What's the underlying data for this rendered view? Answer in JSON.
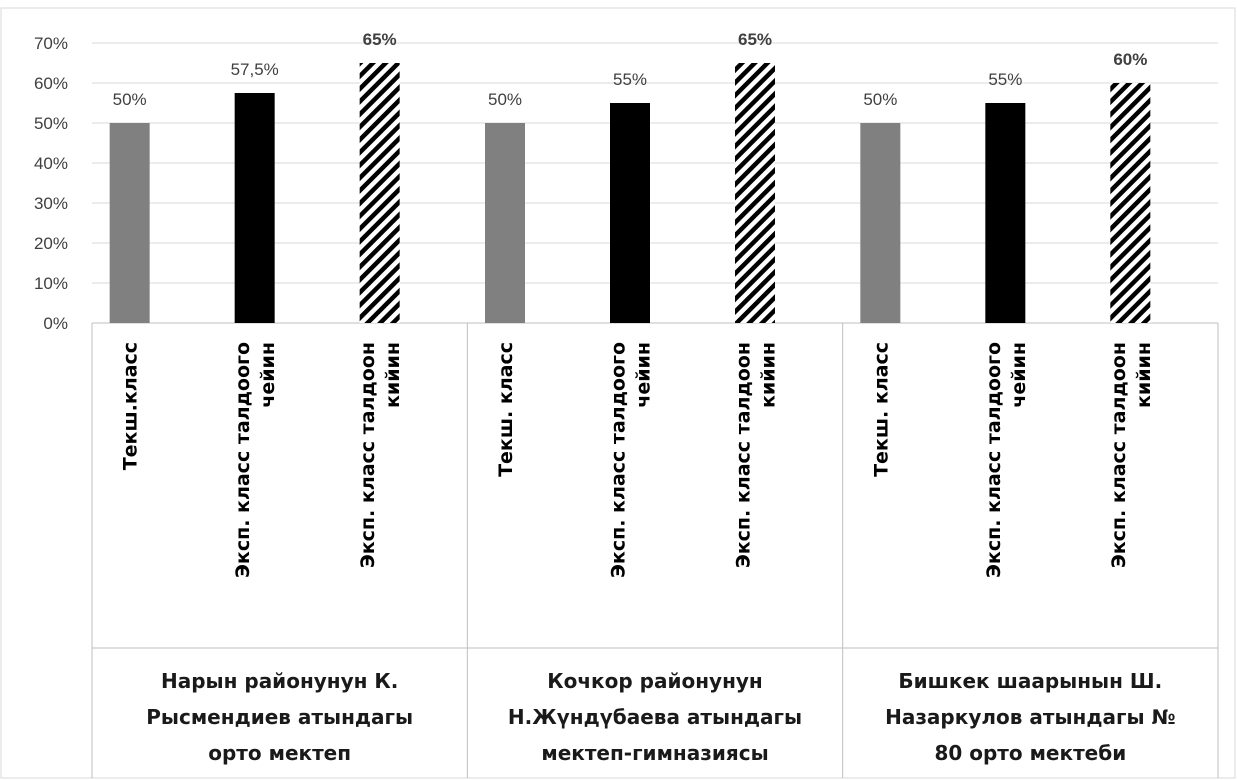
{
  "chart_data": {
    "type": "bar",
    "ylim": [
      0,
      0.7
    ],
    "ytick_step": 0.1,
    "ytick_labels": [
      "0%",
      "10%",
      "20%",
      "30%",
      "40%",
      "50%",
      "60%",
      "70%"
    ],
    "grid": true,
    "groups": [
      {
        "label": "Нарын районунун К. Рысмендиев атындагы орто мектеп",
        "label_lines": [
          "Нарын районунун К.",
          "Рысмендиев атындагы",
          "орто мектеп"
        ],
        "bars": [
          {
            "category": "Текш.класс",
            "category_lines": [
              "Текш.класс"
            ],
            "value": 0.5,
            "label": "50%",
            "style": "gray"
          },
          {
            "category": "Эксп. класс талдоого чейин",
            "category_lines": [
              "Эксп. класс талдоого",
              "чейин"
            ],
            "value": 0.575,
            "label": "57,5%",
            "style": "black"
          },
          {
            "category": "Эксп. класс талдоон кийин",
            "category_lines": [
              "Эксп. класс талдоон",
              "кийин"
            ],
            "value": 0.65,
            "label": "65%",
            "style": "hatched"
          }
        ]
      },
      {
        "label": "Кочкор районунун Н.Жүндүбаева атындагы мектеп-гимназиясы",
        "label_lines": [
          "Кочкор районунун",
          "Н.Жүндүбаева атындагы",
          "мектеп-гимназиясы"
        ],
        "bars": [
          {
            "category": "Текш. класс",
            "category_lines": [
              "Текш. класс"
            ],
            "value": 0.5,
            "label": "50%",
            "style": "gray"
          },
          {
            "category": "Эксп. класс талдоого чейин",
            "category_lines": [
              "Эксп. класс талдоого",
              "чейин"
            ],
            "value": 0.55,
            "label": "55%",
            "style": "black"
          },
          {
            "category": "Эксп. класс талдоон кийин",
            "category_lines": [
              "Эксп. класс талдоон",
              "кийин"
            ],
            "value": 0.65,
            "label": "65%",
            "style": "hatched"
          }
        ]
      },
      {
        "label": "Бишкек шаарынын Ш. Назаркулов атындагы № 80 орто мектеби",
        "label_lines": [
          "Бишкек шаарынын Ш.",
          "Назаркулов атындагы №",
          "80 орто мектеби"
        ],
        "bars": [
          {
            "category": "Текш. класс",
            "category_lines": [
              "Текш. класс"
            ],
            "value": 0.5,
            "label": "50%",
            "style": "gray"
          },
          {
            "category": "Эксп. класс талдоого чейин",
            "category_lines": [
              "Эксп. класс талдоого",
              "чейин"
            ],
            "value": 0.55,
            "label": "55%",
            "style": "black"
          },
          {
            "category": "Эксп. класс талдоон кийин",
            "category_lines": [
              "Эксп. класс талдоон",
              "кийин"
            ],
            "value": 0.6,
            "label": "60%",
            "style": "hatched"
          }
        ]
      }
    ],
    "colors": {
      "gray": "#808080",
      "black": "#000000",
      "hatch": "#000000",
      "grid": "#d9d9d9",
      "axis": "#bfbfbf"
    }
  }
}
